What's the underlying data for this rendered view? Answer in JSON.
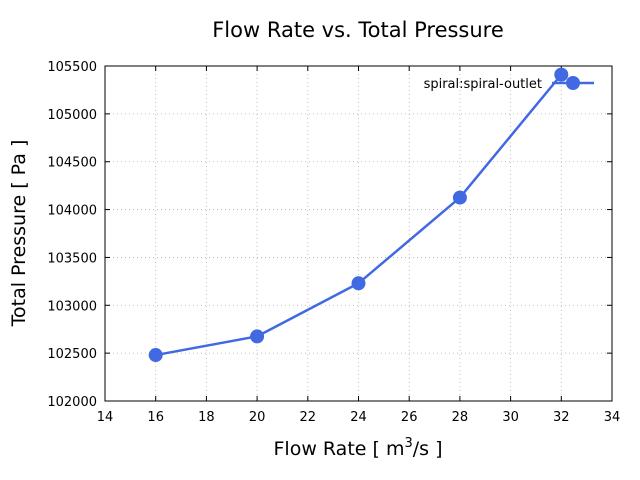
{
  "chart_data": {
    "type": "line",
    "title": "Flow Rate vs. Total Pressure",
    "xlabel_main": "Flow Rate [ m",
    "xlabel_sup": "3",
    "xlabel_tail": "/s ]",
    "ylabel": "Total Pressure [ Pa ]",
    "xlim": [
      14,
      34
    ],
    "ylim": [
      102000,
      105500
    ],
    "xticks": [
      "14",
      "16",
      "18",
      "20",
      "22",
      "24",
      "26",
      "28",
      "30",
      "32",
      "34"
    ],
    "yticks": [
      "102000",
      "102500",
      "103000",
      "103500",
      "104000",
      "104500",
      "105000",
      "105500"
    ],
    "grid": true,
    "legend_position": "top-right",
    "series": [
      {
        "name": "spiral:spiral-outlet",
        "color": "#4169e1",
        "x": [
          16,
          20,
          24,
          28,
          32
        ],
        "y": [
          102480,
          102675,
          103230,
          104125,
          105410
        ]
      }
    ]
  }
}
